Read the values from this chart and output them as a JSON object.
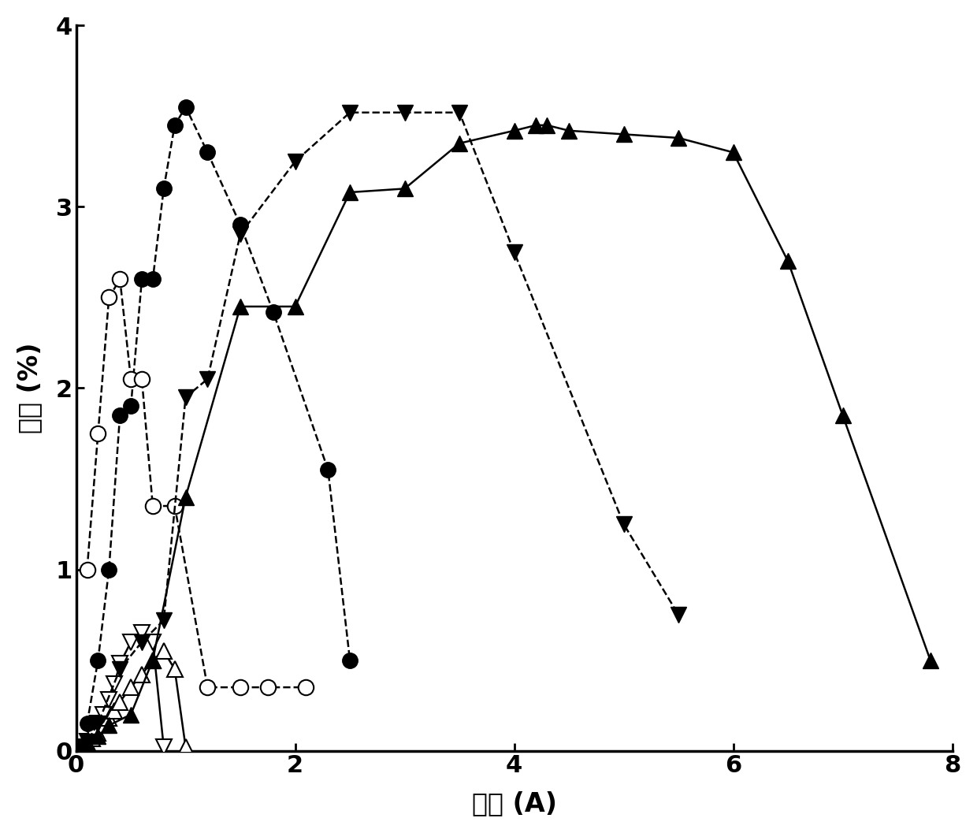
{
  "xlabel": "电流 (A)",
  "ylabel": "效率 (%)",
  "xlim": [
    0,
    8
  ],
  "ylim": [
    0,
    4
  ],
  "xticks": [
    0,
    2,
    4,
    6,
    8
  ],
  "yticks": [
    0,
    1,
    2,
    3,
    4
  ],
  "fc_x": [
    0.1,
    0.2,
    0.3,
    0.4,
    0.5,
    0.6,
    0.7,
    0.8,
    0.9,
    1.0,
    1.2,
    1.5,
    1.8,
    2.3,
    2.5
  ],
  "fc_y": [
    0.15,
    0.5,
    1.0,
    1.85,
    1.9,
    2.6,
    2.6,
    3.1,
    3.45,
    3.55,
    3.3,
    2.9,
    2.42,
    1.55,
    0.5
  ],
  "oc_x": [
    0.1,
    0.2,
    0.3,
    0.4,
    0.5,
    0.6,
    0.7,
    0.9,
    1.2,
    1.5,
    1.75,
    2.1
  ],
  "oc_y": [
    1.0,
    1.75,
    2.5,
    2.6,
    2.05,
    2.05,
    1.35,
    1.35,
    0.35,
    0.35,
    0.35,
    0.35
  ],
  "ftu_x": [
    0.05,
    0.1,
    0.2,
    0.3,
    0.5,
    0.7,
    1.0,
    1.5,
    2.0,
    2.5,
    3.0,
    3.5,
    4.0,
    4.2,
    4.3,
    4.5,
    5.0,
    5.5,
    6.0,
    6.5,
    7.0,
    7.8
  ],
  "ftu_y": [
    0.02,
    0.04,
    0.08,
    0.14,
    0.2,
    0.5,
    1.4,
    2.45,
    2.45,
    3.08,
    3.1,
    3.35,
    3.42,
    3.45,
    3.45,
    3.42,
    3.4,
    3.38,
    3.3,
    2.7,
    1.85,
    0.5
  ],
  "ftd_x": [
    0.05,
    0.1,
    0.2,
    0.4,
    0.6,
    0.8,
    1.0,
    1.2,
    1.5,
    2.0,
    2.5,
    3.0,
    3.5,
    4.0,
    5.0,
    5.5
  ],
  "ftd_y": [
    0.02,
    0.05,
    0.15,
    0.45,
    0.6,
    0.72,
    1.95,
    2.05,
    2.85,
    3.25,
    3.52,
    3.52,
    3.52,
    2.75,
    1.25,
    0.75
  ],
  "otu_x": [
    0.05,
    0.1,
    0.15,
    0.2,
    0.25,
    0.3,
    0.35,
    0.4,
    0.5,
    0.6,
    0.7,
    0.8,
    0.9,
    1.0
  ],
  "otu_y": [
    0.02,
    0.04,
    0.07,
    0.1,
    0.14,
    0.18,
    0.22,
    0.27,
    0.35,
    0.42,
    0.5,
    0.55,
    0.45,
    0.02
  ],
  "otd_x": [
    0.05,
    0.1,
    0.15,
    0.2,
    0.25,
    0.3,
    0.35,
    0.4,
    0.5,
    0.6,
    0.7,
    0.8
  ],
  "otd_y": [
    0.02,
    0.05,
    0.1,
    0.15,
    0.2,
    0.28,
    0.37,
    0.48,
    0.6,
    0.65,
    0.6,
    0.02
  ],
  "xlabel_fontsize": 24,
  "ylabel_fontsize": 24,
  "tick_fontsize": 22,
  "markersize": 14,
  "linewidth": 1.8
}
